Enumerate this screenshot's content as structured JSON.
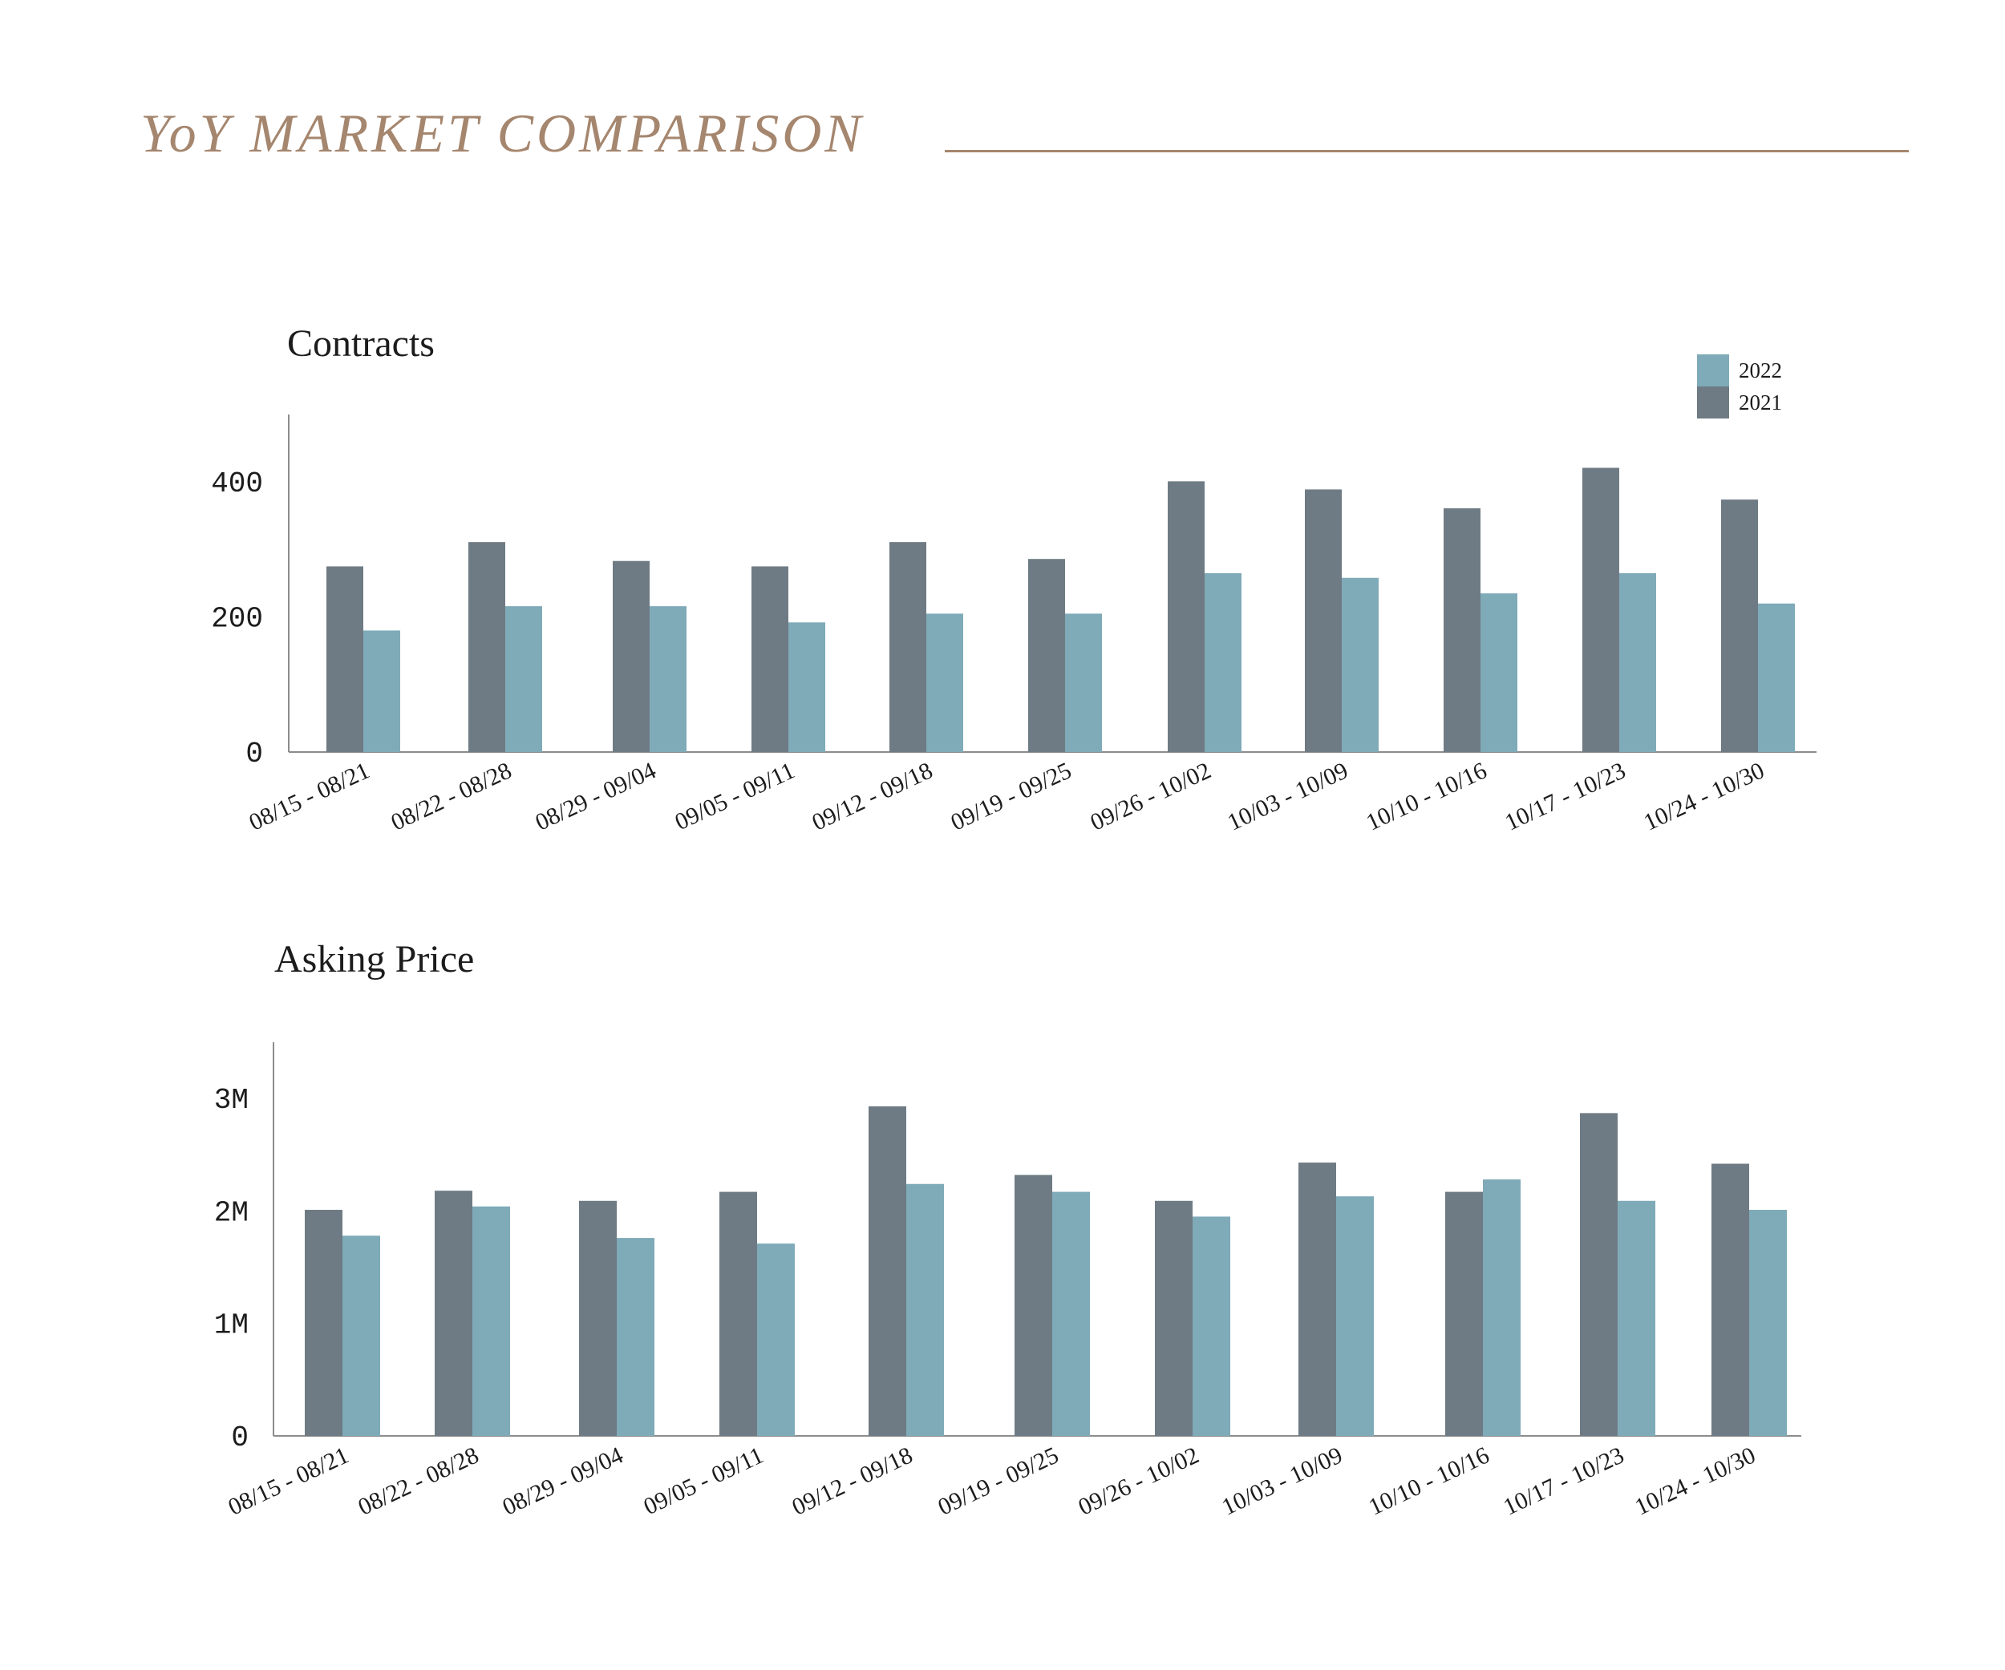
{
  "header": {
    "title": "YoY MARKET COMPARISON",
    "accent_color": "#a5866e"
  },
  "colors": {
    "series_2021": "#6e7b84",
    "series_2022": "#7faab8",
    "axis": "#8c8c8c"
  },
  "chart_data": [
    {
      "type": "bar",
      "title": "Contracts",
      "xlabel": "",
      "ylabel": "",
      "categories": [
        "08/15 - 08/21",
        "08/22 - 08/28",
        "08/29 - 09/04",
        "09/05 - 09/11",
        "09/12 - 09/18",
        "09/19 - 09/25",
        "09/26 - 10/02",
        "10/03 - 10/09",
        "10/10 - 10/16",
        "10/17 - 10/23",
        "10/24 - 10/30"
      ],
      "series": [
        {
          "name": "2021",
          "values": [
            275,
            311,
            283,
            275,
            311,
            286,
            401,
            389,
            361,
            421,
            374
          ]
        },
        {
          "name": "2022",
          "values": [
            180,
            216,
            216,
            192,
            205,
            205,
            265,
            258,
            235,
            265,
            220
          ]
        }
      ],
      "yticks": [
        0,
        200,
        400
      ],
      "ytick_labels": [
        "0",
        "200",
        "400"
      ],
      "ylim": [
        0,
        500
      ],
      "legend": {
        "position": "top-right",
        "entries": [
          "2022",
          "2021"
        ]
      },
      "grid": false
    },
    {
      "type": "bar",
      "title": "Asking Price",
      "xlabel": "",
      "ylabel": "",
      "categories": [
        "08/15 - 08/21",
        "08/22 - 08/28",
        "08/29 - 09/04",
        "09/05 - 09/11",
        "09/12 - 09/18",
        "09/19 - 09/25",
        "09/26 - 10/02",
        "10/03 - 10/09",
        "10/10 - 10/16",
        "10/17 - 10/23",
        "10/24 - 10/30"
      ],
      "series": [
        {
          "name": "2021",
          "values": [
            2010000,
            2180000,
            2090000,
            2170000,
            2930000,
            2320000,
            2090000,
            2430000,
            2170000,
            2870000,
            2420000
          ]
        },
        {
          "name": "2022",
          "values": [
            1780000,
            2040000,
            1760000,
            1710000,
            2240000,
            2170000,
            1950000,
            2130000,
            2280000,
            2090000,
            2010000
          ]
        }
      ],
      "yticks": [
        0,
        1000000,
        2000000,
        3000000
      ],
      "ytick_labels": [
        "0",
        "1M",
        "2M",
        "3M"
      ],
      "ylim": [
        0,
        3500000
      ],
      "grid": false
    }
  ]
}
